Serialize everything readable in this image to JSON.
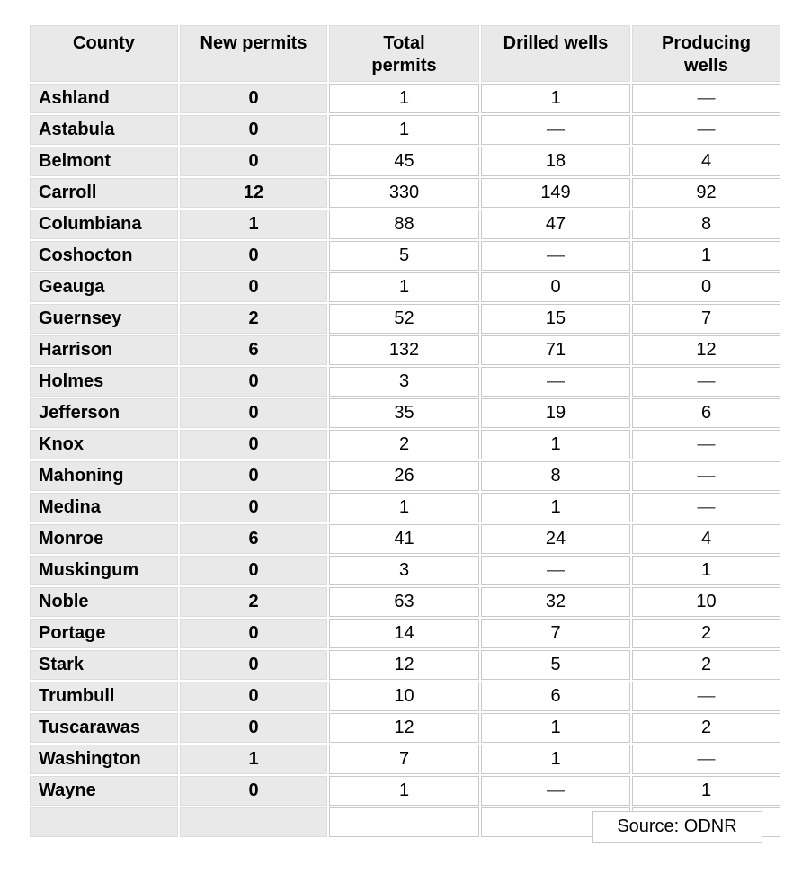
{
  "chart_data": {
    "type": "table",
    "columns": [
      "County",
      "New permits",
      "Total permits",
      "Drilled wells",
      "Producing wells"
    ],
    "rows": [
      [
        "Ashland",
        0,
        1,
        1,
        null
      ],
      [
        "Astabula",
        0,
        1,
        null,
        null
      ],
      [
        "Belmont",
        0,
        45,
        18,
        4
      ],
      [
        "Carroll",
        12,
        330,
        149,
        92
      ],
      [
        "Columbiana",
        1,
        88,
        47,
        8
      ],
      [
        "Coshocton",
        0,
        5,
        null,
        1
      ],
      [
        "Geauga",
        0,
        1,
        0,
        0
      ],
      [
        "Guernsey",
        2,
        52,
        15,
        7
      ],
      [
        "Harrison",
        6,
        132,
        71,
        12
      ],
      [
        "Holmes",
        0,
        3,
        null,
        null
      ],
      [
        "Jefferson",
        0,
        35,
        19,
        6
      ],
      [
        "Knox",
        0,
        2,
        1,
        null
      ],
      [
        "Mahoning",
        0,
        26,
        8,
        null
      ],
      [
        "Medina",
        0,
        1,
        1,
        null
      ],
      [
        "Monroe",
        6,
        41,
        24,
        4
      ],
      [
        "Muskingum",
        0,
        3,
        null,
        1
      ],
      [
        "Noble",
        2,
        63,
        32,
        10
      ],
      [
        "Portage",
        0,
        14,
        7,
        2
      ],
      [
        "Stark",
        0,
        12,
        5,
        2
      ],
      [
        "Trumbull",
        0,
        10,
        6,
        null
      ],
      [
        "Tuscarawas",
        0,
        12,
        1,
        2
      ],
      [
        "Washington",
        1,
        7,
        1,
        null
      ],
      [
        "Wayne",
        0,
        1,
        null,
        1
      ]
    ],
    "empty_cell_marker": "—",
    "source": "ODNR"
  },
  "table": {
    "headers_display": [
      "County",
      "New permits",
      "Total\npermits",
      "Drilled wells",
      "Producing\nwells"
    ],
    "source_label": "Source: ODNR",
    "empty_marker": "—"
  },
  "colors": {
    "cell_gray": "#e9e9e9",
    "gray_cell_border": "#dcdcdc",
    "white_cell_border": "#c9c9c9",
    "text": "#000000",
    "dash": "#454545"
  }
}
